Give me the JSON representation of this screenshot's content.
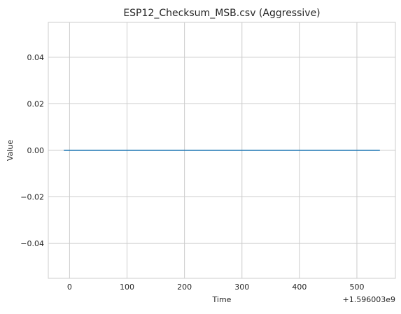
{
  "chart_data": {
    "type": "line",
    "title": "ESP12_Checksum_MSB.csv (Aggressive)",
    "xlabel": "Time",
    "ylabel": "Value",
    "x_offset_label": "+1.596003e9",
    "xlim": [
      -37,
      567
    ],
    "ylim": [
      -0.055,
      0.055
    ],
    "x_ticks": [
      0,
      100,
      200,
      300,
      400,
      500
    ],
    "x_tick_labels": [
      "0",
      "100",
      "200",
      "300",
      "400",
      "500"
    ],
    "y_ticks": [
      -0.04,
      -0.02,
      0.0,
      0.02,
      0.04
    ],
    "y_tick_labels": [
      "−0.04",
      "−0.02",
      "0.00",
      "0.02",
      "0.04"
    ],
    "grid": true,
    "series": [
      {
        "x": [
          -10,
          540
        ],
        "y": [
          0,
          0
        ],
        "color": "#1f77b4"
      }
    ]
  }
}
